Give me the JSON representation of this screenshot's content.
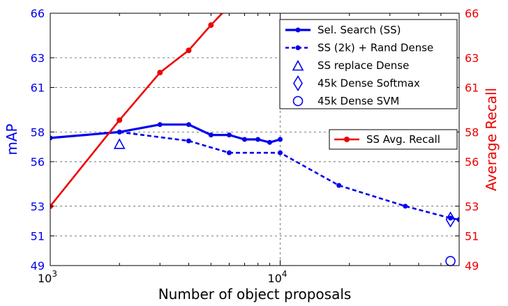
{
  "chart_data": {
    "type": "line",
    "xlabel": "Number of object proposals",
    "ylabel_left": "mAP",
    "ylabel_right": "Average Recall",
    "x_scale": "log",
    "xlim": [
      1000,
      60000
    ],
    "ylim": [
      49,
      66
    ],
    "x_major_ticks": [
      {
        "value": 1000,
        "base": "10",
        "exp": "3"
      },
      {
        "value": 10000,
        "base": "10",
        "exp": "4"
      }
    ],
    "y_ticks_left": [
      "49",
      "51",
      "53",
      "56",
      "58",
      "61",
      "63",
      "66"
    ],
    "y_ticks_right": [
      "49",
      "51",
      "53",
      "56",
      "58",
      "61",
      "63",
      "66"
    ],
    "y_tick_values": [
      49,
      51,
      53,
      56,
      58,
      61,
      63,
      66
    ],
    "grid": true,
    "colors": {
      "blue": "#0000ee",
      "red": "#ee0000"
    },
    "series": [
      {
        "name": "Sel. Search (SS)",
        "axis": "left",
        "style": "solid",
        "color": "#0000ee",
        "x": [
          1000,
          2000,
          3000,
          4000,
          5000,
          6000,
          7000,
          8000,
          9000,
          10000
        ],
        "y": [
          57.6,
          58.0,
          58.5,
          58.5,
          57.8,
          57.8,
          57.5,
          57.5,
          57.3,
          57.5
        ]
      },
      {
        "name": "SS (2k) + Rand Dense",
        "axis": "left",
        "style": "dashed",
        "color": "#0000ee",
        "x": [
          2000,
          4000,
          6000,
          10000,
          18000,
          35000,
          55000,
          60000
        ],
        "y": [
          58.0,
          57.4,
          56.6,
          56.6,
          54.4,
          53.0,
          52.2,
          52.1
        ]
      },
      {
        "name": "SS Avg. Recall",
        "axis": "right",
        "style": "solid",
        "color": "#ee0000",
        "x": [
          1000,
          2000,
          3000,
          4000,
          5000,
          6000
        ],
        "y": [
          53.0,
          58.8,
          62.0,
          63.5,
          65.2,
          66.5
        ]
      }
    ],
    "markers": [
      {
        "name": "SS replace Dense",
        "shape": "triangle",
        "x": 2000,
        "y": 57.2
      },
      {
        "name": "45k Dense Softmax",
        "shape": "diamond",
        "x": 55000,
        "y": 52.1
      },
      {
        "name": "45k Dense SVM",
        "shape": "circle",
        "x": 55000,
        "y": 49.3
      }
    ],
    "legend": {
      "placement": "top-right",
      "entries": [
        "Sel. Search (SS)",
        "SS (2k) + Rand Dense",
        "SS replace Dense",
        "45k Dense Softmax",
        "45k Dense SVM"
      ]
    },
    "legend2": {
      "placement": "center-right",
      "entries": [
        "SS Avg. Recall"
      ]
    }
  }
}
